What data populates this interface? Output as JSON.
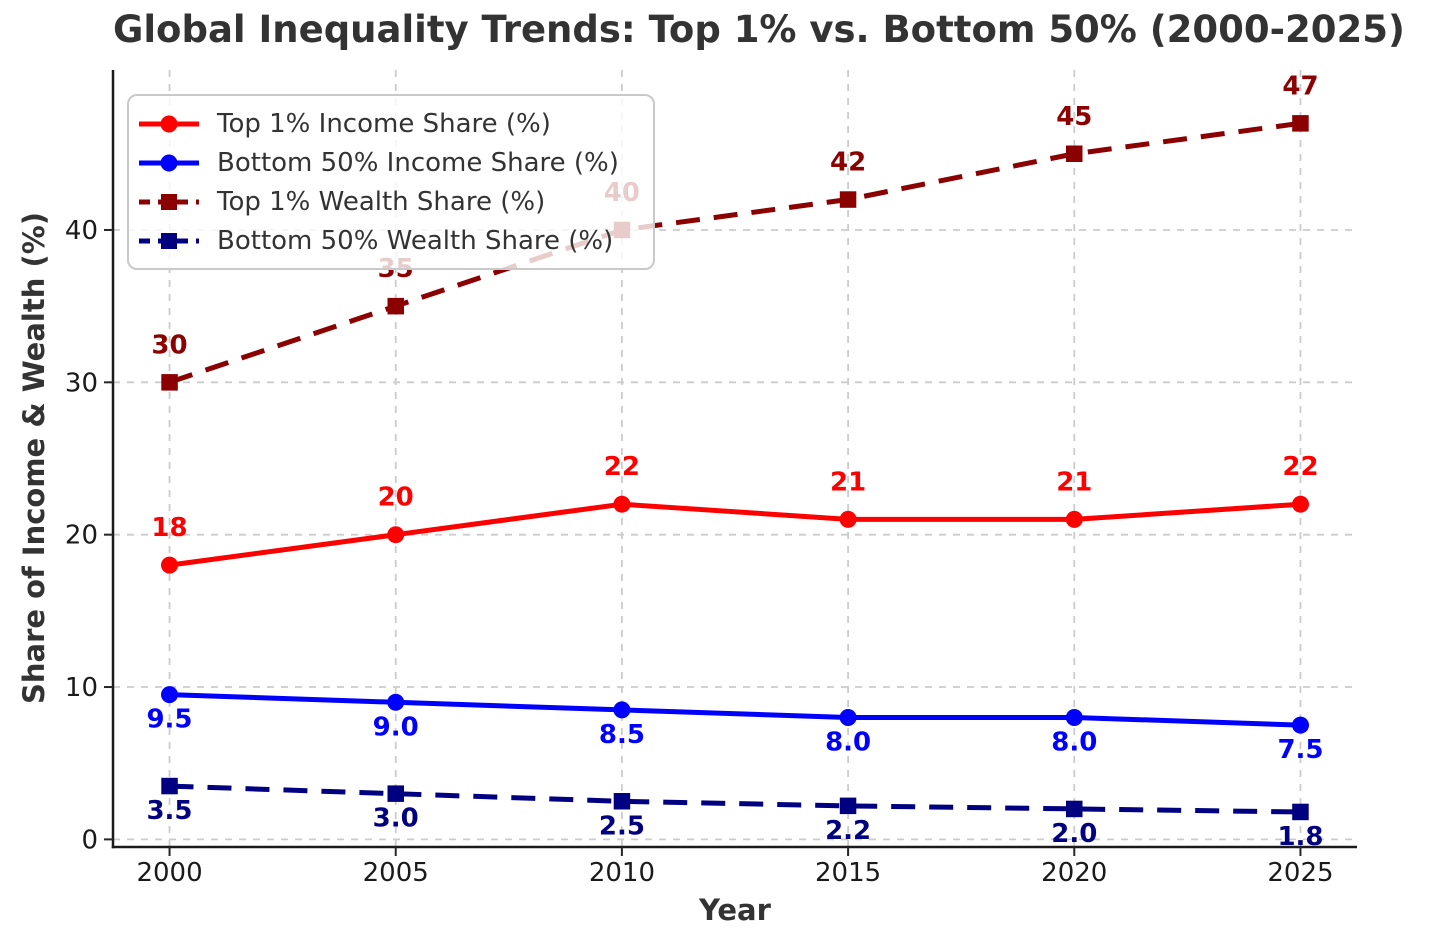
{
  "figure": {
    "background": "#ffffff",
    "title_color": "#333333",
    "tick_color": "#1a1a1a",
    "grid_color": "#cccccc",
    "legend_border_color": "#c9c9c9"
  },
  "chart_data": {
    "type": "line",
    "title": "Global Inequality Trends: Top 1% vs. Bottom 50% (2000-2025)",
    "xlabel": "Year",
    "ylabel": "Share of Income & Wealth (%)",
    "x": [
      2000,
      2005,
      2010,
      2015,
      2020,
      2025
    ],
    "xticks": [
      2000,
      2005,
      2010,
      2015,
      2020,
      2025
    ],
    "xtick_labels": [
      "2000",
      "2005",
      "2010",
      "2015",
      "2020",
      "2025"
    ],
    "yticks": [
      0,
      10,
      20,
      30,
      40
    ],
    "ytick_labels": [
      "0",
      "10",
      "20",
      "30",
      "40"
    ],
    "xlim": [
      1998.75,
      2026.25
    ],
    "ylim": [
      -0.5,
      50.5
    ],
    "grid": true,
    "legend_position": "upper-left",
    "series": [
      {
        "name": "Top 1% Income Share (%)",
        "color": "#ff0000",
        "line": "solid",
        "marker": "circle",
        "values": [
          18,
          20,
          22,
          21,
          21,
          22
        ],
        "point_labels": [
          "18",
          "20",
          "22",
          "21",
          "21",
          "22"
        ],
        "label_side": "above"
      },
      {
        "name": "Bottom 50% Income Share (%)",
        "color": "#0000ff",
        "line": "solid",
        "marker": "circle",
        "values": [
          9.5,
          9.0,
          8.5,
          8.0,
          8.0,
          7.5
        ],
        "point_labels": [
          "9.5",
          "9.0",
          "8.5",
          "8.0",
          "8.0",
          "7.5"
        ],
        "label_side": "below"
      },
      {
        "name": "Top 1% Wealth Share (%)",
        "color": "#8b0000",
        "line": "dashed",
        "marker": "square",
        "values": [
          30,
          35,
          40,
          42,
          45,
          47
        ],
        "point_labels": [
          "30",
          "35",
          "40",
          "42",
          "45",
          "47"
        ],
        "label_side": "above"
      },
      {
        "name": "Bottom 50% Wealth Share (%)",
        "color": "#000080",
        "line": "dashed",
        "marker": "square",
        "values": [
          3.5,
          3.0,
          2.5,
          2.2,
          2.0,
          1.8
        ],
        "point_labels": [
          "3.5",
          "3.0",
          "2.5",
          "2.2",
          "2.0",
          "1.8"
        ],
        "label_side": "below"
      }
    ]
  }
}
